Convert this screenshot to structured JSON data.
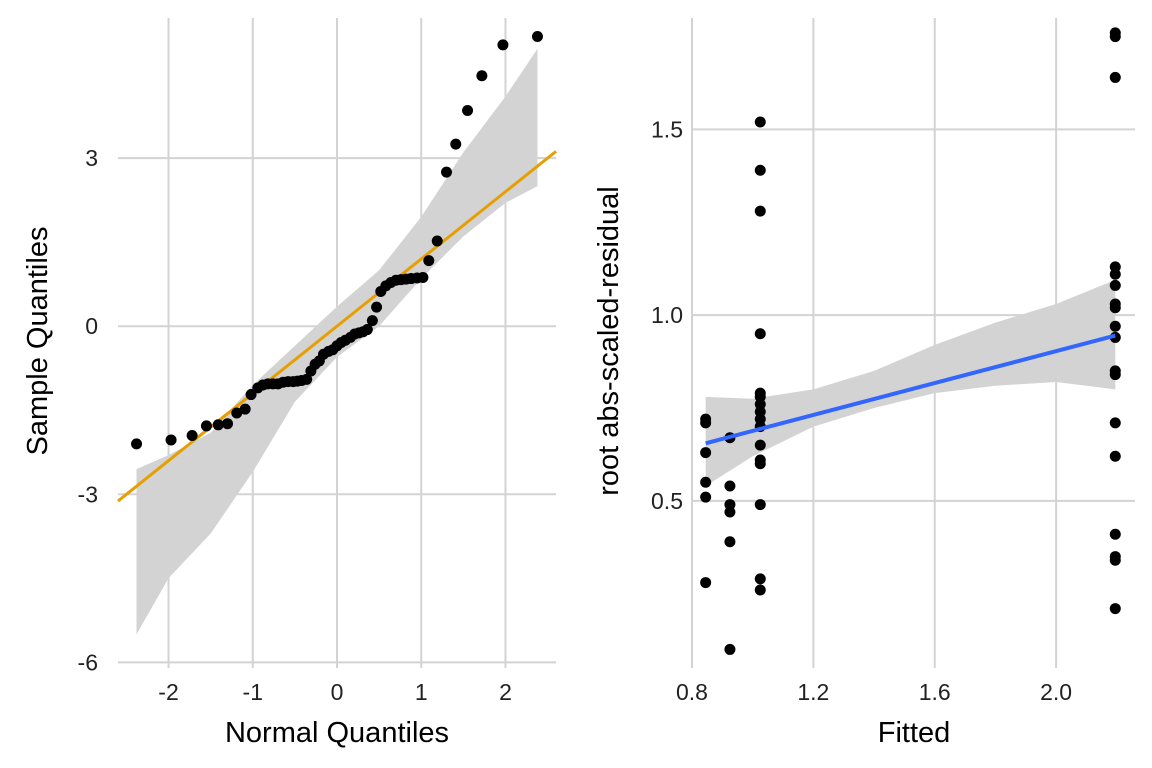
{
  "chart_data": [
    {
      "type": "scatter",
      "title": "",
      "xlabel": "Normal Quantiles",
      "ylabel": "Sample Quantiles",
      "xlim": [
        -2.6,
        2.6
      ],
      "ylim": [
        -6.1,
        5.5
      ],
      "xticks": [
        -2,
        -1,
        0,
        1,
        2
      ],
      "xtick_labels": [
        "-2",
        "-1",
        "0",
        "1",
        "2"
      ],
      "yticks": [
        -6,
        -3,
        0,
        3
      ],
      "ytick_labels": [
        "-6",
        "-3",
        "0",
        "3"
      ],
      "grid": true,
      "colors": {
        "points": "#000000",
        "reference_line": "#E69F00",
        "band": "#d3d3d3"
      },
      "points": [
        [
          -2.38,
          -2.1
        ],
        [
          -1.97,
          -2.03
        ],
        [
          -1.72,
          -1.95
        ],
        [
          -1.55,
          -1.78
        ],
        [
          -1.41,
          -1.76
        ],
        [
          -1.3,
          -1.74
        ],
        [
          -1.19,
          -1.55
        ],
        [
          -1.09,
          -1.48
        ],
        [
          -1.02,
          -1.22
        ],
        [
          -0.94,
          -1.1
        ],
        [
          -0.88,
          -1.05
        ],
        [
          -0.82,
          -1.03
        ],
        [
          -0.76,
          -1.03
        ],
        [
          -0.7,
          -1.03
        ],
        [
          -0.64,
          -1.0
        ],
        [
          -0.58,
          -0.99
        ],
        [
          -0.52,
          -0.99
        ],
        [
          -0.47,
          -0.98
        ],
        [
          -0.42,
          -0.97
        ],
        [
          -0.36,
          -0.95
        ],
        [
          -0.31,
          -0.8
        ],
        [
          -0.26,
          -0.68
        ],
        [
          -0.21,
          -0.62
        ],
        [
          -0.16,
          -0.5
        ],
        [
          -0.1,
          -0.45
        ],
        [
          -0.05,
          -0.42
        ],
        [
          0.0,
          -0.35
        ],
        [
          0.05,
          -0.29
        ],
        [
          0.1,
          -0.25
        ],
        [
          0.16,
          -0.2
        ],
        [
          0.21,
          -0.14
        ],
        [
          0.26,
          -0.12
        ],
        [
          0.31,
          -0.1
        ],
        [
          0.36,
          -0.06
        ],
        [
          0.42,
          0.1
        ],
        [
          0.47,
          0.34
        ],
        [
          0.52,
          0.62
        ],
        [
          0.58,
          0.72
        ],
        [
          0.64,
          0.78
        ],
        [
          0.7,
          0.82
        ],
        [
          0.76,
          0.83
        ],
        [
          0.82,
          0.84
        ],
        [
          0.88,
          0.85
        ],
        [
          0.95,
          0.86
        ],
        [
          1.02,
          0.87
        ],
        [
          1.09,
          1.17
        ],
        [
          1.19,
          1.52
        ],
        [
          1.3,
          2.75
        ],
        [
          1.41,
          3.25
        ],
        [
          1.55,
          3.85
        ],
        [
          1.72,
          4.47
        ],
        [
          1.97,
          5.02
        ],
        [
          2.38,
          5.17
        ]
      ],
      "reference_line": {
        "intercept": 0.0,
        "slope": 1.2
      },
      "confidence_band": [
        [
          -2.38,
          -5.5,
          -2.55
        ],
        [
          -2.0,
          -4.5,
          -2.3
        ],
        [
          -1.5,
          -3.7,
          -1.9
        ],
        [
          -1.0,
          -2.6,
          -1.05
        ],
        [
          -0.5,
          -1.35,
          -0.35
        ],
        [
          0.0,
          -0.55,
          0.35
        ],
        [
          0.5,
          0.0,
          1.0
        ],
        [
          1.0,
          0.85,
          1.95
        ],
        [
          1.5,
          1.6,
          3.1
        ],
        [
          2.0,
          2.2,
          4.1
        ],
        [
          2.38,
          2.5,
          4.95
        ]
      ]
    },
    {
      "type": "scatter",
      "title": "",
      "xlabel": "Fitted",
      "ylabel": "root abs-scaled-residual",
      "xlim": [
        0.8,
        2.26
      ],
      "ylim": [
        0.05,
        1.8
      ],
      "xticks": [
        0.8,
        1.2,
        1.6,
        2.0
      ],
      "xtick_labels": [
        "0.8",
        "1.2",
        "1.6",
        "2.0"
      ],
      "yticks": [
        0.5,
        1.0,
        1.5
      ],
      "ytick_labels": [
        "0.5",
        "1.0",
        "1.5"
      ],
      "grid": true,
      "colors": {
        "points": "#000000",
        "smooth_line": "#3366FF",
        "band": "#d3d3d3"
      },
      "points": [
        [
          0.845,
          0.72
        ],
        [
          0.845,
          0.71
        ],
        [
          0.845,
          0.63
        ],
        [
          0.845,
          0.55
        ],
        [
          0.845,
          0.51
        ],
        [
          0.845,
          0.28
        ],
        [
          0.925,
          0.67
        ],
        [
          0.925,
          0.54
        ],
        [
          0.925,
          0.49
        ],
        [
          0.925,
          0.47
        ],
        [
          0.925,
          0.39
        ],
        [
          0.925,
          0.1
        ],
        [
          1.025,
          1.52
        ],
        [
          1.025,
          1.39
        ],
        [
          1.025,
          1.28
        ],
        [
          1.025,
          0.95
        ],
        [
          1.025,
          0.79
        ],
        [
          1.025,
          0.78
        ],
        [
          1.025,
          0.76
        ],
        [
          1.025,
          0.74
        ],
        [
          1.025,
          0.72
        ],
        [
          1.025,
          0.7
        ],
        [
          1.025,
          0.65
        ],
        [
          1.025,
          0.61
        ],
        [
          1.025,
          0.6
        ],
        [
          1.025,
          0.49
        ],
        [
          1.025,
          0.29
        ],
        [
          1.025,
          0.26
        ],
        [
          2.195,
          1.76
        ],
        [
          2.195,
          1.75
        ],
        [
          2.195,
          1.64
        ],
        [
          2.195,
          1.13
        ],
        [
          2.195,
          1.11
        ],
        [
          2.195,
          1.08
        ],
        [
          2.195,
          1.03
        ],
        [
          2.195,
          1.02
        ],
        [
          2.195,
          0.97
        ],
        [
          2.195,
          0.94
        ],
        [
          2.195,
          0.85
        ],
        [
          2.195,
          0.84
        ],
        [
          2.195,
          0.71
        ],
        [
          2.195,
          0.62
        ],
        [
          2.195,
          0.41
        ],
        [
          2.195,
          0.35
        ],
        [
          2.195,
          0.34
        ],
        [
          2.195,
          0.21
        ]
      ],
      "smooth_line": [
        [
          0.845,
          0.655
        ],
        [
          2.195,
          0.945
        ]
      ],
      "confidence_band": [
        [
          0.845,
          0.54,
          0.78
        ],
        [
          1.0,
          0.62,
          0.775
        ],
        [
          1.2,
          0.7,
          0.8
        ],
        [
          1.4,
          0.75,
          0.85
        ],
        [
          1.6,
          0.79,
          0.92
        ],
        [
          1.8,
          0.81,
          0.98
        ],
        [
          2.0,
          0.82,
          1.03
        ],
        [
          2.195,
          0.8,
          1.095
        ]
      ]
    }
  ]
}
